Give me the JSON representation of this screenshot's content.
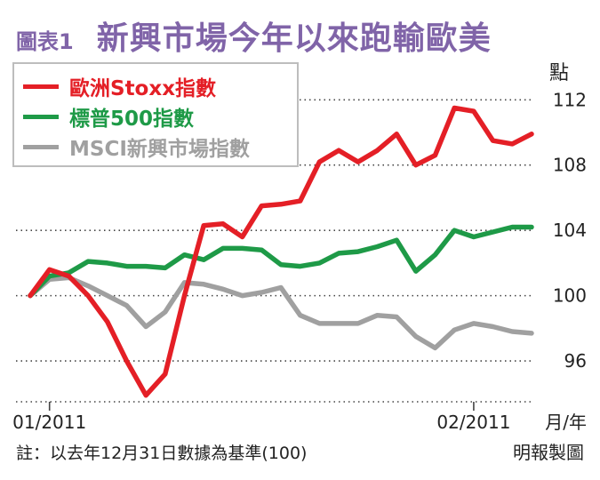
{
  "header": {
    "label": "圖表1",
    "title": "新興市場今年以來跑輸歐美"
  },
  "unit_label": "點",
  "x_unit_label": "月/年",
  "footnote": "註：以去年12月31日數據為基準(100)",
  "credit": "明報製圖",
  "chart_data": {
    "type": "line",
    "title": "新興市場今年以來跑輸歐美",
    "ylabel": "點",
    "xlabel": "月/年",
    "ylim": [
      93.5,
      115.5
    ],
    "yticks": [
      96,
      100,
      104,
      108,
      112
    ],
    "xticks": [
      {
        "index": 1,
        "label": "01/2011"
      },
      {
        "index": 23,
        "label": "02/2011"
      }
    ],
    "grid": "dotted horizontal",
    "legend": "top-left",
    "series": [
      {
        "name": "歐洲Stoxx指數",
        "color": "#e41f26",
        "values": [
          100.0,
          101.6,
          101.2,
          100.0,
          98.4,
          96.0,
          93.9,
          95.2,
          100.0,
          104.3,
          104.4,
          103.6,
          105.5,
          105.6,
          105.8,
          108.2,
          108.9,
          108.2,
          108.9,
          109.9,
          108.0,
          108.6,
          111.5,
          111.3,
          109.5,
          109.3,
          109.9
        ]
      },
      {
        "name": "標普500指數",
        "color": "#1e9a47",
        "values": [
          100.0,
          101.2,
          101.4,
          102.1,
          102.0,
          101.8,
          101.8,
          101.7,
          102.5,
          102.2,
          102.9,
          102.9,
          102.8,
          101.9,
          101.8,
          102.0,
          102.6,
          102.7,
          103.0,
          103.4,
          101.5,
          102.5,
          104.0,
          103.6,
          103.9,
          104.2,
          104.2
        ]
      },
      {
        "name": "MSCI新興市場指數",
        "color": "#a0a0a0",
        "values": [
          100.0,
          101.0,
          101.1,
          100.6,
          100.0,
          99.4,
          98.1,
          99.0,
          100.8,
          100.7,
          100.4,
          100.0,
          100.2,
          100.5,
          98.8,
          98.3,
          98.3,
          98.3,
          98.8,
          98.7,
          97.5,
          96.8,
          97.9,
          98.3,
          98.1,
          97.8,
          97.7
        ]
      }
    ]
  }
}
